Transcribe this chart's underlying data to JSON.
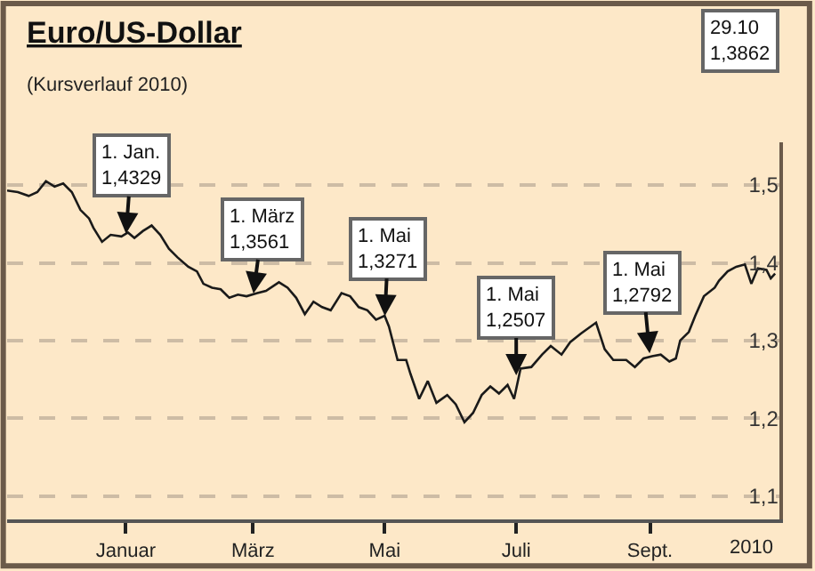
{
  "chart_data": {
    "type": "line",
    "title": "Euro/US-Dollar",
    "subtitle": "(Kursverlauf 2010)",
    "xlabel": "2010",
    "x": [
      "2009-11-07",
      "2009-11-12",
      "2009-11-17",
      "2009-11-21",
      "2009-11-25",
      "2009-11-29",
      "2009-12-03",
      "2009-12-07",
      "2009-12-11",
      "2009-12-15",
      "2009-12-17",
      "2009-12-21",
      "2009-12-25",
      "2009-12-30",
      "2010-01-02",
      "2010-01-05",
      "2010-01-09",
      "2010-01-13",
      "2010-01-17",
      "2010-01-21",
      "2010-01-25",
      "2010-01-30",
      "2010-02-03",
      "2010-02-06",
      "2010-02-10",
      "2010-02-14",
      "2010-02-18",
      "2010-02-22",
      "2010-02-26",
      "2010-03-03",
      "2010-03-07",
      "2010-03-13",
      "2010-03-17",
      "2010-03-21",
      "2010-03-25",
      "2010-03-29",
      "2010-04-02",
      "2010-04-06",
      "2010-04-11",
      "2010-04-15",
      "2010-04-19",
      "2010-04-23",
      "2010-04-27",
      "2010-05-01",
      "2010-05-03",
      "2010-05-07",
      "2010-05-11",
      "2010-05-13",
      "2010-05-17",
      "2010-05-21",
      "2010-05-25",
      "2010-05-30",
      "2010-06-03",
      "2010-06-07",
      "2010-06-11",
      "2010-06-15",
      "2010-06-19",
      "2010-06-23",
      "2010-06-27",
      "2010-06-30",
      "2010-07-03",
      "2010-07-08",
      "2010-07-13",
      "2010-07-17",
      "2010-07-22",
      "2010-07-26",
      "2010-07-31",
      "2010-08-07",
      "2010-08-11",
      "2010-08-15",
      "2010-08-21",
      "2010-08-25",
      "2010-08-29",
      "2010-09-02",
      "2010-09-06",
      "2010-09-10",
      "2010-09-13",
      "2010-09-15",
      "2010-09-19",
      "2010-09-22",
      "2010-09-26",
      "2010-10-01",
      "2010-10-03",
      "2010-10-07",
      "2010-10-11",
      "2010-10-15",
      "2010-10-18",
      "2010-10-21",
      "2010-10-25",
      "2010-10-27",
      "2010-10-29"
    ],
    "series": [
      {
        "color": "#1a1a1a",
        "values": [
          1.493,
          1.491,
          1.486,
          1.491,
          1.505,
          1.498,
          1.502,
          1.491,
          1.468,
          1.457,
          1.445,
          1.427,
          1.436,
          1.434,
          1.439,
          1.432,
          1.441,
          1.448,
          1.436,
          1.418,
          1.407,
          1.395,
          1.389,
          1.373,
          1.368,
          1.366,
          1.355,
          1.359,
          1.357,
          1.361,
          1.364,
          1.375,
          1.368,
          1.355,
          1.334,
          1.35,
          1.343,
          1.339,
          1.361,
          1.357,
          1.343,
          1.339,
          1.327,
          1.332,
          1.318,
          1.275,
          1.275,
          1.257,
          1.225,
          1.248,
          1.22,
          1.23,
          1.218,
          1.195,
          1.207,
          1.23,
          1.241,
          1.232,
          1.243,
          1.225,
          1.264,
          1.266,
          1.282,
          1.293,
          1.282,
          1.298,
          1.309,
          1.323,
          1.289,
          1.275,
          1.275,
          1.266,
          1.277,
          1.28,
          1.282,
          1.273,
          1.277,
          1.3,
          1.311,
          1.332,
          1.357,
          1.368,
          1.377,
          1.389,
          1.395,
          1.398,
          1.373,
          1.393,
          1.391,
          1.38,
          1.386
        ]
      }
    ],
    "xlim": [
      "2009-11-07",
      "2010-10-31"
    ],
    "xticks": [
      {
        "value": "2010-01-01",
        "label": "Januar"
      },
      {
        "value": "2010-03-01",
        "label": "März"
      },
      {
        "value": "2010-05-01",
        "label": "Mai"
      },
      {
        "value": "2010-07-01",
        "label": "Juli"
      },
      {
        "value": "2010-09-01",
        "label": "Sept."
      }
    ],
    "ylim": [
      1.07,
      1.555
    ],
    "yticks": [
      {
        "value": 1.1,
        "label": "1,1"
      },
      {
        "value": 1.2,
        "label": "1,2"
      },
      {
        "value": 1.3,
        "label": "1,3"
      },
      {
        "value": 1.4,
        "label": "1,4"
      },
      {
        "value": 1.5,
        "label": "1,5"
      }
    ],
    "grid": "y",
    "marker": "none",
    "line_style": "solid",
    "annotations": [
      {
        "text": "1. Jan.\n1,4329",
        "x": "2010-01-01",
        "y": 1.4329
      },
      {
        "text": "1. März\n1,3561",
        "x": "2010-03-01",
        "y": 1.3561
      },
      {
        "text": "1. Mai\n1,3271",
        "x": "2010-05-01",
        "y": 1.3271
      },
      {
        "text": "1. Mai\n1,2507",
        "x": "2010-07-01",
        "y": 1.2507
      },
      {
        "text": "1. Mai\n1,2792",
        "x": "2010-09-01",
        "y": 1.2792
      },
      "29.10\n1,3862"
    ]
  }
}
